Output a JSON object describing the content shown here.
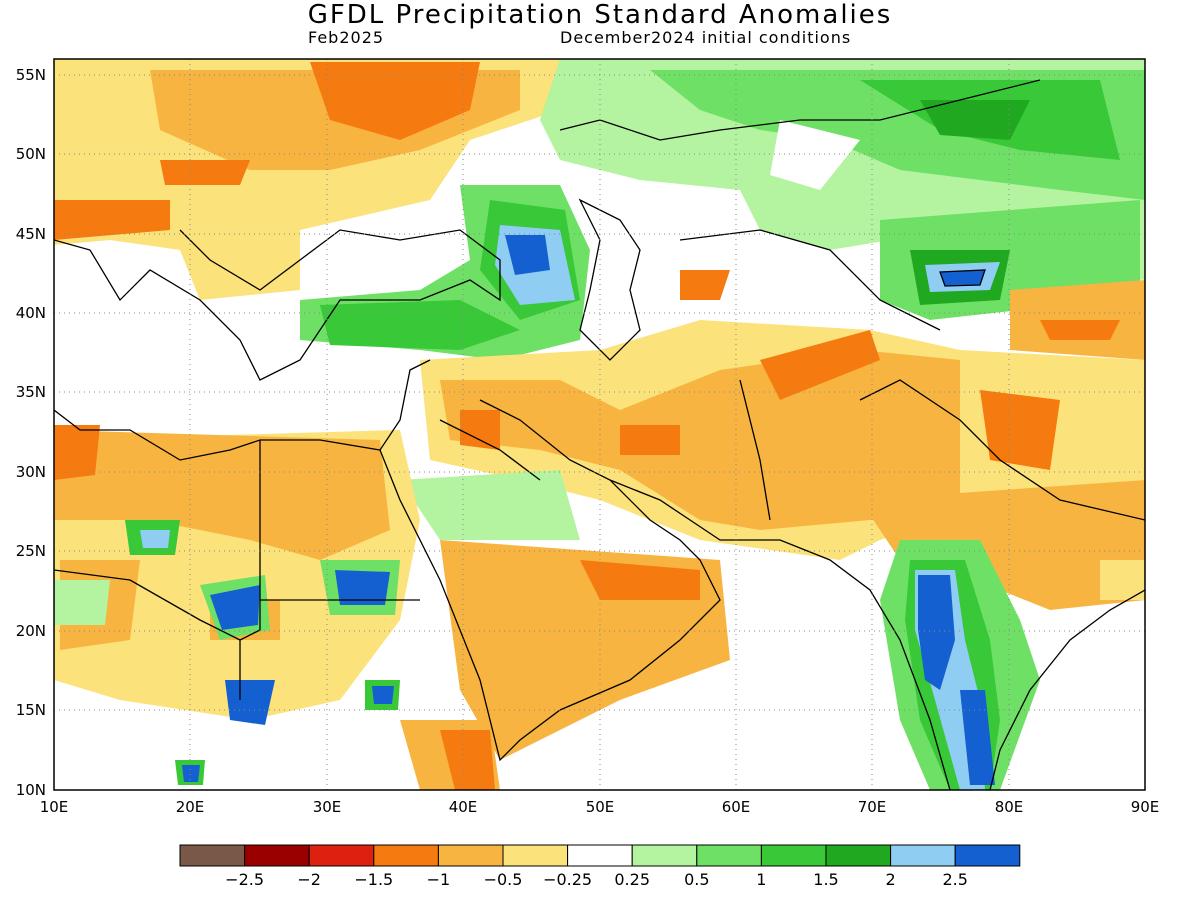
{
  "title": "GFDL Precipitation Standard Anomalies",
  "subtitle_left": "Feb2025",
  "subtitle_right": "December2024 initial conditions",
  "map": {
    "lon_range": [
      10,
      90
    ],
    "lat_range": [
      10,
      56
    ],
    "lon_ticks": [
      "10E",
      "20E",
      "30E",
      "40E",
      "50E",
      "60E",
      "70E",
      "80E",
      "90E"
    ],
    "lat_ticks": [
      "10N",
      "15N",
      "20N",
      "25N",
      "30N",
      "35N",
      "40N",
      "45N",
      "50N",
      "55N"
    ],
    "grid": "dotted"
  },
  "colorbar": {
    "colors": [
      "#7a5848",
      "#9b0000",
      "#dd2010",
      "#f57a10",
      "#f8b440",
      "#fbe27a",
      "#ffffff",
      "#b4f3a0",
      "#6fe066",
      "#38c838",
      "#20a820",
      "#8fcdf3",
      "#1560d0"
    ],
    "labels": [
      "−2.5",
      "−2",
      "−1.5",
      "−1",
      "−0.5",
      "−0.25",
      "0.25",
      "0.5",
      "1",
      "1.5",
      "2",
      "2.5"
    ]
  }
}
